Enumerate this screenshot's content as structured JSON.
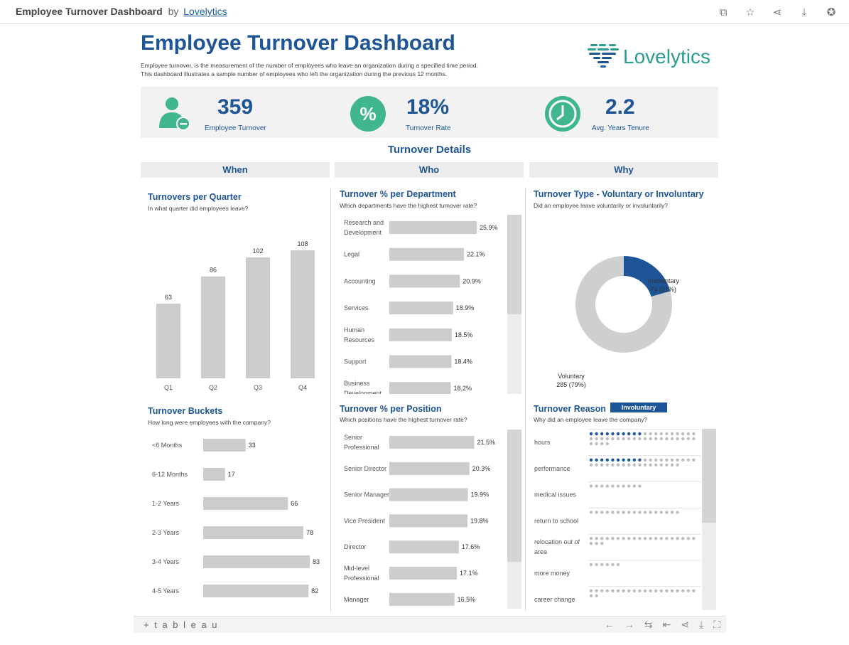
{
  "topbar": {
    "title": "Employee Turnover Dashboard",
    "by": "by",
    "author": "Lovelytics"
  },
  "header": {
    "title": "Employee Turnover Dashboard",
    "desc1": "Employee turnover, is the measurement of the number of employees who leave an organization during a specified time period.",
    "desc2": "This dashboard illustrates a sample number of employees who left the organization during the previous 12 months.",
    "logo": "Lovelytics"
  },
  "kpis": [
    {
      "value": "359",
      "label": "Employee Turnover"
    },
    {
      "value": "18%",
      "label": "Turnover Rate"
    },
    {
      "value": "2.2",
      "label": "Avg. Years Tenure"
    }
  ],
  "section": "Turnover Details",
  "columns": [
    "When",
    "Who",
    "Why"
  ],
  "panels": {
    "quarter": {
      "title": "Turnovers per Quarter",
      "sub": "In what quarter did employees leave?"
    },
    "dept": {
      "title": "Turnover % per Department",
      "sub": "Which departments have the highest turnover rate?"
    },
    "type": {
      "title": "Turnover Type - Voluntary or Involuntary",
      "sub": "Did an employee leave voluntarily or involuntarily?"
    },
    "buckets": {
      "title": "Turnover Buckets",
      "sub": "How long were employees with the company?"
    },
    "position": {
      "title": "Turnover % per Position",
      "sub": "Which positions have the highest turnover rate?"
    },
    "reason": {
      "title": "Turnover Reason",
      "sub": "Why did an employee leave the company?",
      "badge": "Involuntary"
    }
  },
  "chart_data": [
    {
      "type": "bar",
      "categories": [
        "Q1",
        "Q2",
        "Q3",
        "Q4"
      ],
      "values": [
        63,
        86,
        102,
        108
      ],
      "title": "Turnovers per Quarter",
      "ylim": [
        0,
        120
      ]
    },
    {
      "type": "bar",
      "orientation": "horizontal",
      "categories": [
        [
          "Research and",
          "Development"
        ],
        [
          "Legal"
        ],
        [
          "Accounting"
        ],
        [
          "Services"
        ],
        [
          "Human",
          "Resources"
        ],
        [
          "Support"
        ],
        [
          "Business",
          "Development"
        ]
      ],
      "values": [
        25.9,
        22.1,
        20.9,
        18.9,
        18.5,
        18.4,
        18.2
      ],
      "labels": [
        "25.9%",
        "22.1%",
        "20.9%",
        "18.9%",
        "18.5%",
        "18.4%",
        "18.2%"
      ],
      "title": "Turnover % per Department"
    },
    {
      "type": "pie",
      "style": "donut",
      "slices": [
        {
          "name": "Involuntary",
          "value": 74,
          "label": "74 (21%)",
          "color": "#1d5597"
        },
        {
          "name": "Voluntary",
          "value": 285,
          "label": "285 (79%)",
          "color": "#cfcfcf"
        }
      ],
      "title": "Turnover Type - Voluntary or Involuntary"
    },
    {
      "type": "bar",
      "orientation": "horizontal",
      "categories": [
        [
          "<6 Months"
        ],
        [
          "6-12 Months"
        ],
        [
          "1-2 Years"
        ],
        [
          "2-3 Years"
        ],
        [
          "3-4 Years"
        ],
        [
          "4-5 Years"
        ]
      ],
      "values": [
        33,
        17,
        66,
        78,
        83,
        82
      ],
      "labels": [
        "33",
        "17",
        "66",
        "78",
        "83",
        "82"
      ],
      "title": "Turnover Buckets"
    },
    {
      "type": "bar",
      "orientation": "horizontal",
      "categories": [
        [
          "Senior",
          "Professional"
        ],
        [
          "Senior Director"
        ],
        [
          "Senior Manager"
        ],
        [
          "Vice President"
        ],
        [
          "Director"
        ],
        [
          "Mid-level",
          "Professional"
        ],
        [
          "Manager"
        ]
      ],
      "values": [
        21.5,
        20.3,
        19.9,
        19.8,
        17.6,
        17.1,
        16.5
      ],
      "labels": [
        "21.5%",
        "20.3%",
        "19.9%",
        "19.8%",
        "17.6%",
        "17.1%",
        "16.5%"
      ],
      "title": "Turnover % per Position"
    },
    {
      "type": "scatter",
      "style": "dot-matrix",
      "categories": [
        [
          "hours"
        ],
        [
          "performance"
        ],
        [
          "medical issues"
        ],
        [
          "return to school"
        ],
        [
          "relocation out of",
          "area"
        ],
        [
          "more money"
        ],
        [
          "career change"
        ]
      ],
      "values": [
        44,
        37,
        10,
        17,
        23,
        6,
        22
      ],
      "highlighted": [
        10,
        10,
        0,
        0,
        0,
        0,
        0
      ],
      "title": "Turnover Reason"
    }
  ],
  "footer": {
    "brand": "+ t a b l e a u"
  },
  "colors": {
    "accent": "#1d5597",
    "bar": "#cccccc",
    "green": "#3fb68b",
    "teal": "#2a9d8f"
  }
}
